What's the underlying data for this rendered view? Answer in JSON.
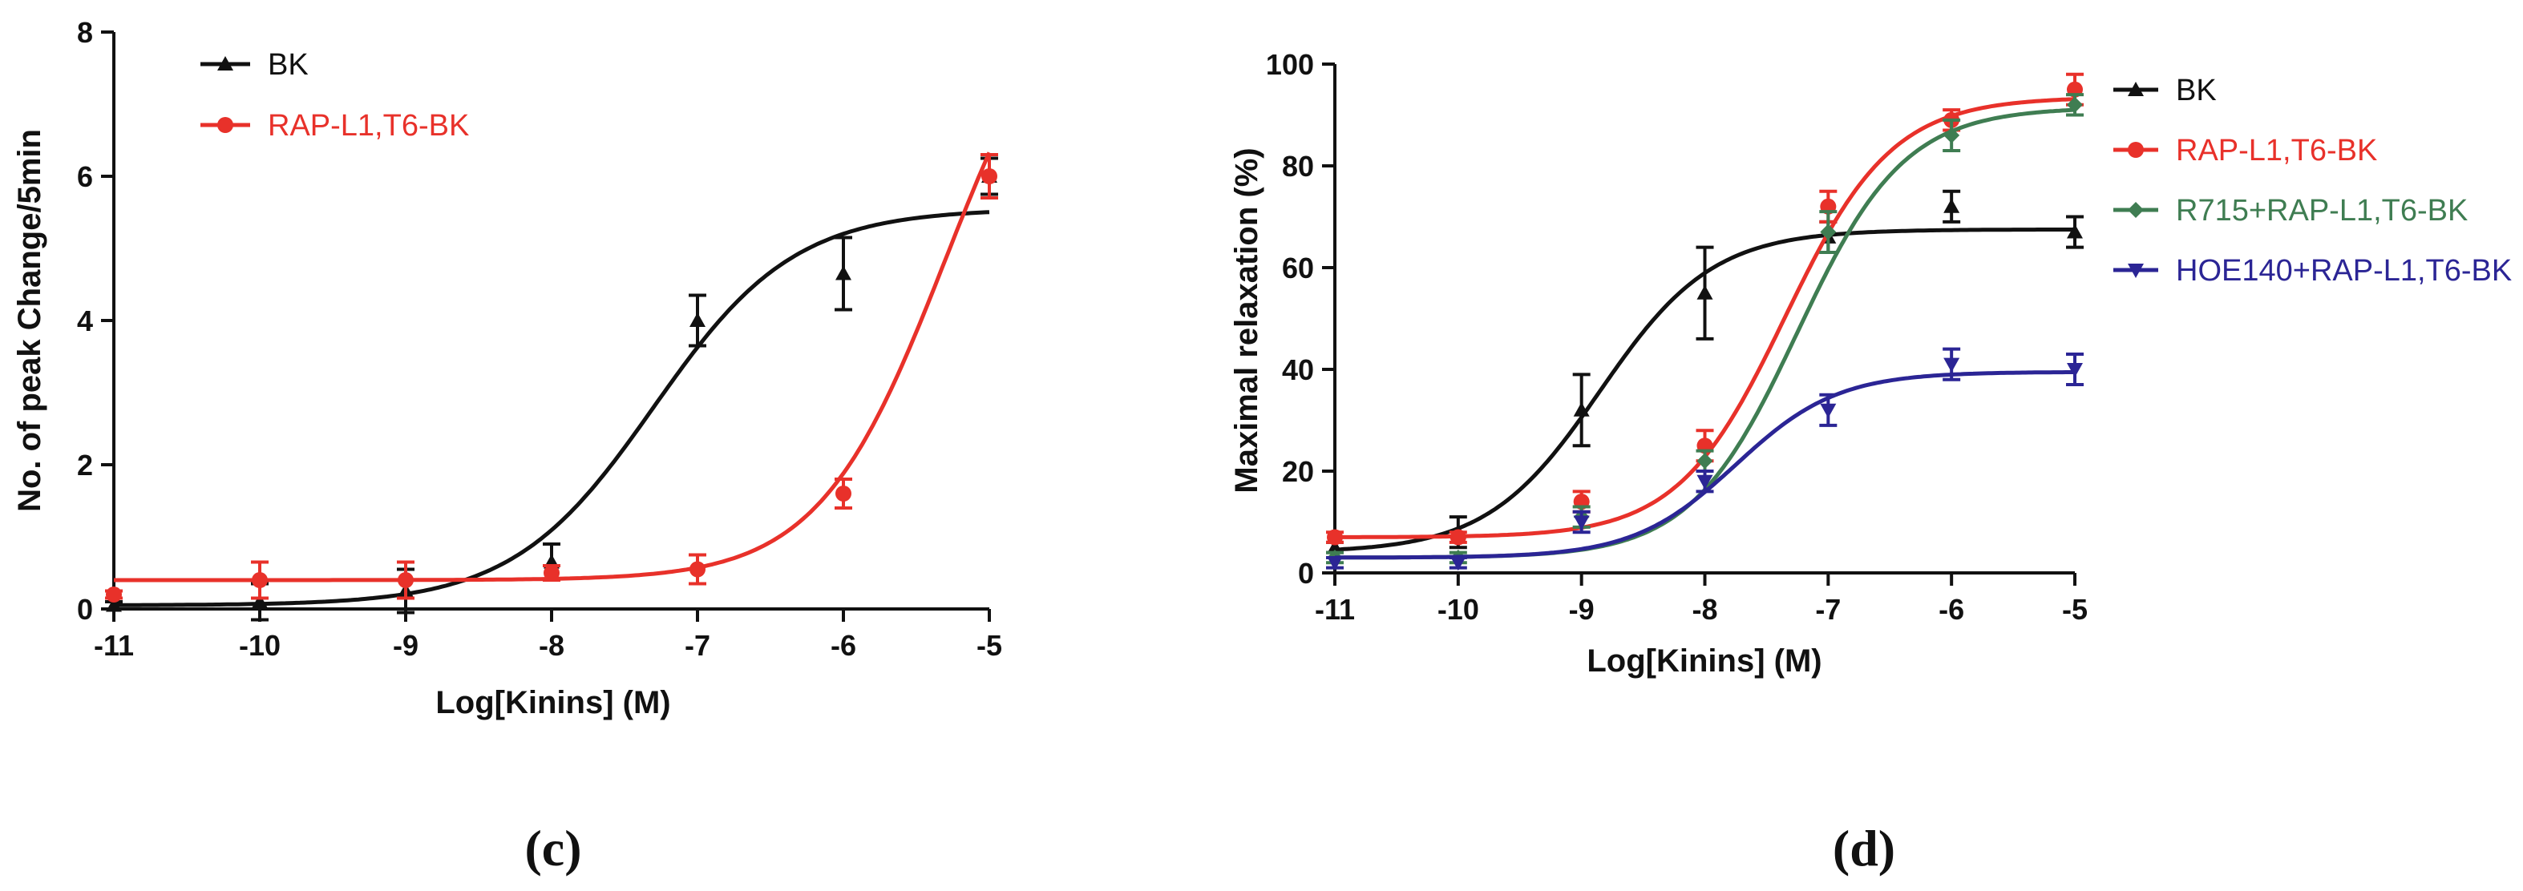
{
  "chart_data": [
    {
      "type": "line",
      "panel_label": "(c)",
      "xlabel": "Log[Kinins] (M)",
      "ylabel": "No. of peak Change/5min",
      "xlim": [
        -11,
        -5
      ],
      "ylim": [
        0,
        8
      ],
      "x_ticks": [
        "-11",
        "-10",
        "-9",
        "-8",
        "-7",
        "-6",
        "-5"
      ],
      "y_ticks": [
        "0",
        "2",
        "4",
        "6",
        "8"
      ],
      "legend_position": "top-left",
      "series": [
        {
          "name": "BK",
          "color": "#111111",
          "marker": "triangle-up",
          "points": [
            {
              "x": -11,
              "y": 0.05,
              "err": 0.05
            },
            {
              "x": -10,
              "y": 0.1,
              "err": 0.25
            },
            {
              "x": -9,
              "y": 0.25,
              "err": 0.3
            },
            {
              "x": -8,
              "y": 0.65,
              "err": 0.25
            },
            {
              "x": -7,
              "y": 4.0,
              "err": 0.35
            },
            {
              "x": -6,
              "y": 4.65,
              "err": 0.5
            },
            {
              "x": -5,
              "y": 6.0,
              "err": 0.25
            }
          ],
          "fit": {
            "bottom": 0.05,
            "top": 5.55,
            "logEC50": -7.3,
            "hill": 0.9
          }
        },
        {
          "name": "RAP-L1,T6-BK",
          "color": "#e8312a",
          "marker": "circle",
          "points": [
            {
              "x": -11,
              "y": 0.2,
              "err": 0.05
            },
            {
              "x": -10,
              "y": 0.4,
              "err": 0.25
            },
            {
              "x": -9,
              "y": 0.4,
              "err": 0.25
            },
            {
              "x": -8,
              "y": 0.5,
              "err": 0.1
            },
            {
              "x": -7,
              "y": 0.55,
              "err": 0.2
            },
            {
              "x": -6,
              "y": 1.6,
              "err": 0.2
            },
            {
              "x": -5,
              "y": 6.0,
              "err": 0.3
            }
          ],
          "fit": {
            "bottom": 0.4,
            "top": 9.3,
            "logEC50": -5.3,
            "hill": 1.0
          }
        }
      ]
    },
    {
      "type": "line",
      "panel_label": "(d)",
      "xlabel": "Log[Kinins] (M)",
      "ylabel": "Maximal relaxation (%)",
      "xlim": [
        -11,
        -5
      ],
      "ylim": [
        0,
        100
      ],
      "x_ticks": [
        "-11",
        "-10",
        "-9",
        "-8",
        "-7",
        "-6",
        "-5"
      ],
      "y_ticks": [
        "0",
        "20",
        "40",
        "60",
        "80",
        "100"
      ],
      "legend_position": "top-right",
      "series": [
        {
          "name": "BK",
          "color": "#111111",
          "marker": "triangle-up",
          "points": [
            {
              "x": -11,
              "y": 5,
              "err": 1
            },
            {
              "x": -10,
              "y": 8,
              "err": 3
            },
            {
              "x": -9,
              "y": 32,
              "err": 7
            },
            {
              "x": -8,
              "y": 55,
              "err": 9
            },
            {
              "x": -7,
              "y": 66,
              "err": 3
            },
            {
              "x": -6,
              "y": 72,
              "err": 3
            },
            {
              "x": -5,
              "y": 67,
              "err": 3
            }
          ],
          "fit": {
            "bottom": 4,
            "top": 67.5,
            "logEC50": -8.85,
            "hill": 0.95
          }
        },
        {
          "name": "RAP-L1,T6-BK",
          "color": "#e8312a",
          "marker": "circle",
          "points": [
            {
              "x": -11,
              "y": 7,
              "err": 1
            },
            {
              "x": -10,
              "y": 7,
              "err": 1
            },
            {
              "x": -9,
              "y": 14,
              "err": 2
            },
            {
              "x": -8,
              "y": 25,
              "err": 3
            },
            {
              "x": -7,
              "y": 72,
              "err": 3
            },
            {
              "x": -6,
              "y": 89,
              "err": 2
            },
            {
              "x": -5,
              "y": 95,
              "err": 3
            }
          ],
          "fit": {
            "bottom": 7,
            "top": 93.5,
            "logEC50": -7.35,
            "hill": 1.0
          }
        },
        {
          "name": "R715+RAP-L1,T6-BK",
          "color": "#3f7d52",
          "marker": "diamond",
          "points": [
            {
              "x": -11,
              "y": 3,
              "err": 1
            },
            {
              "x": -10,
              "y": 3,
              "err": 1
            },
            {
              "x": -9,
              "y": 11,
              "err": 2
            },
            {
              "x": -8,
              "y": 22,
              "err": 2
            },
            {
              "x": -7,
              "y": 67,
              "err": 4
            },
            {
              "x": -6,
              "y": 86,
              "err": 3
            },
            {
              "x": -5,
              "y": 92,
              "err": 2
            }
          ],
          "fit": {
            "bottom": 3,
            "top": 91.5,
            "logEC50": -7.25,
            "hill": 1.0
          }
        },
        {
          "name": "HOE140+RAP-L1,T6-BK",
          "color": "#2b2595",
          "marker": "triangle-down",
          "points": [
            {
              "x": -11,
              "y": 2,
              "err": 1
            },
            {
              "x": -10,
              "y": 2,
              "err": 1
            },
            {
              "x": -9,
              "y": 10,
              "err": 2
            },
            {
              "x": -8,
              "y": 18,
              "err": 2
            },
            {
              "x": -7,
              "y": 32,
              "err": 3
            },
            {
              "x": -6,
              "y": 41,
              "err": 3
            },
            {
              "x": -5,
              "y": 40,
              "err": 3
            }
          ],
          "fit": {
            "bottom": 3,
            "top": 39.5,
            "logEC50": -7.75,
            "hill": 1.05
          }
        }
      ]
    }
  ]
}
